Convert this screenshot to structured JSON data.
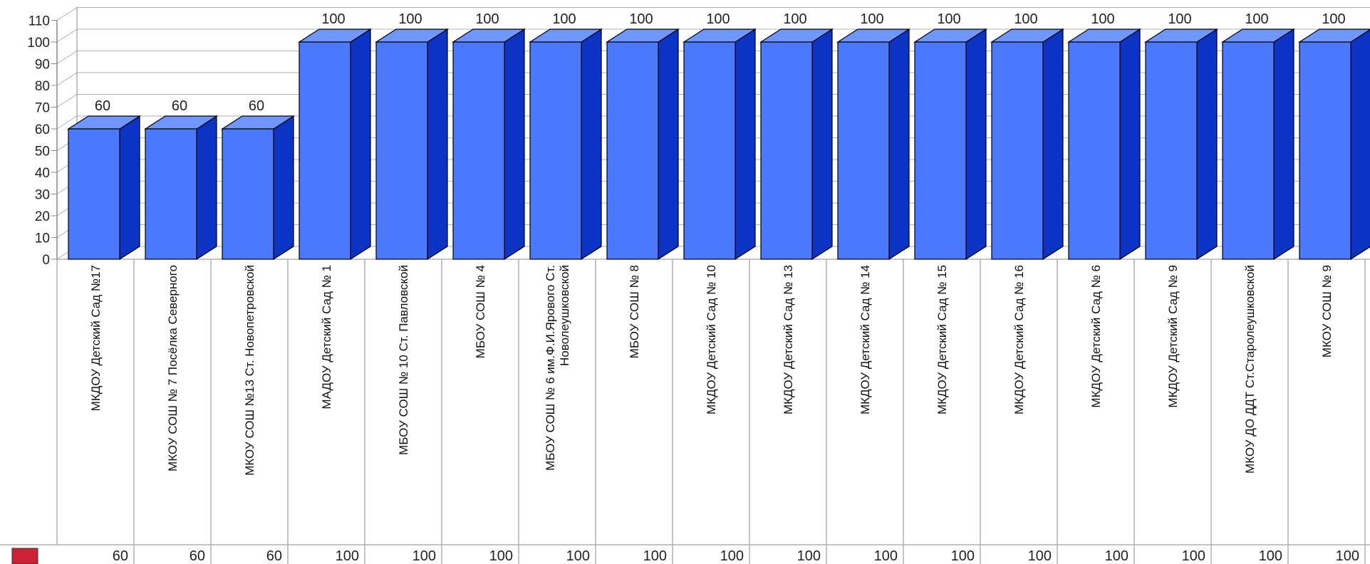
{
  "chart_data": {
    "type": "bar",
    "three_d": true,
    "ylim": [
      0,
      110
    ],
    "yticks": [
      0,
      10,
      20,
      30,
      40,
      50,
      60,
      70,
      80,
      90,
      100,
      110
    ],
    "grid": true,
    "categories": [
      "МКДОУ Детский Сад №17",
      "МКОУ СОШ № 7 Посёлка Северного",
      "МКОУ СОШ №13 Ст. Новопетровской",
      "МАДОУ Детский Сад № 1",
      "МБОУ СОШ № 10 Ст. Павловской",
      "МБОУ СОШ № 4",
      "МБОУ СОШ № 6 им.Ф.И.Ярового Ст. Новолеушковской",
      "МБОУ СОШ № 8",
      "МКДОУ Детский Сад № 10",
      "МКДОУ Детский Сад № 13",
      "МКДОУ Детский Сад № 14",
      "МКДОУ Детский Сад № 15",
      "МКДОУ Детский Сад № 16",
      "МКДОУ Детский Сад № 6",
      "МКДОУ Детский Сад № 9",
      "МКОУ ДО ДДТ Ст.Старолеушковской",
      "МКОУ СОШ № 9"
    ],
    "series": [
      {
        "values": [
          60,
          60,
          60,
          100,
          100,
          100,
          100,
          100,
          100,
          100,
          100,
          100,
          100,
          100,
          100,
          100,
          100
        ],
        "color": "#4a78ff",
        "legend_swatch_color": "#cc2233"
      }
    ],
    "data_table": true,
    "colors": {
      "bar_front": "#4a78ff",
      "bar_top": "#6f97ff",
      "bar_side": "#0b33c4",
      "grid": "#b0b0b0",
      "axis": "#888888"
    }
  }
}
